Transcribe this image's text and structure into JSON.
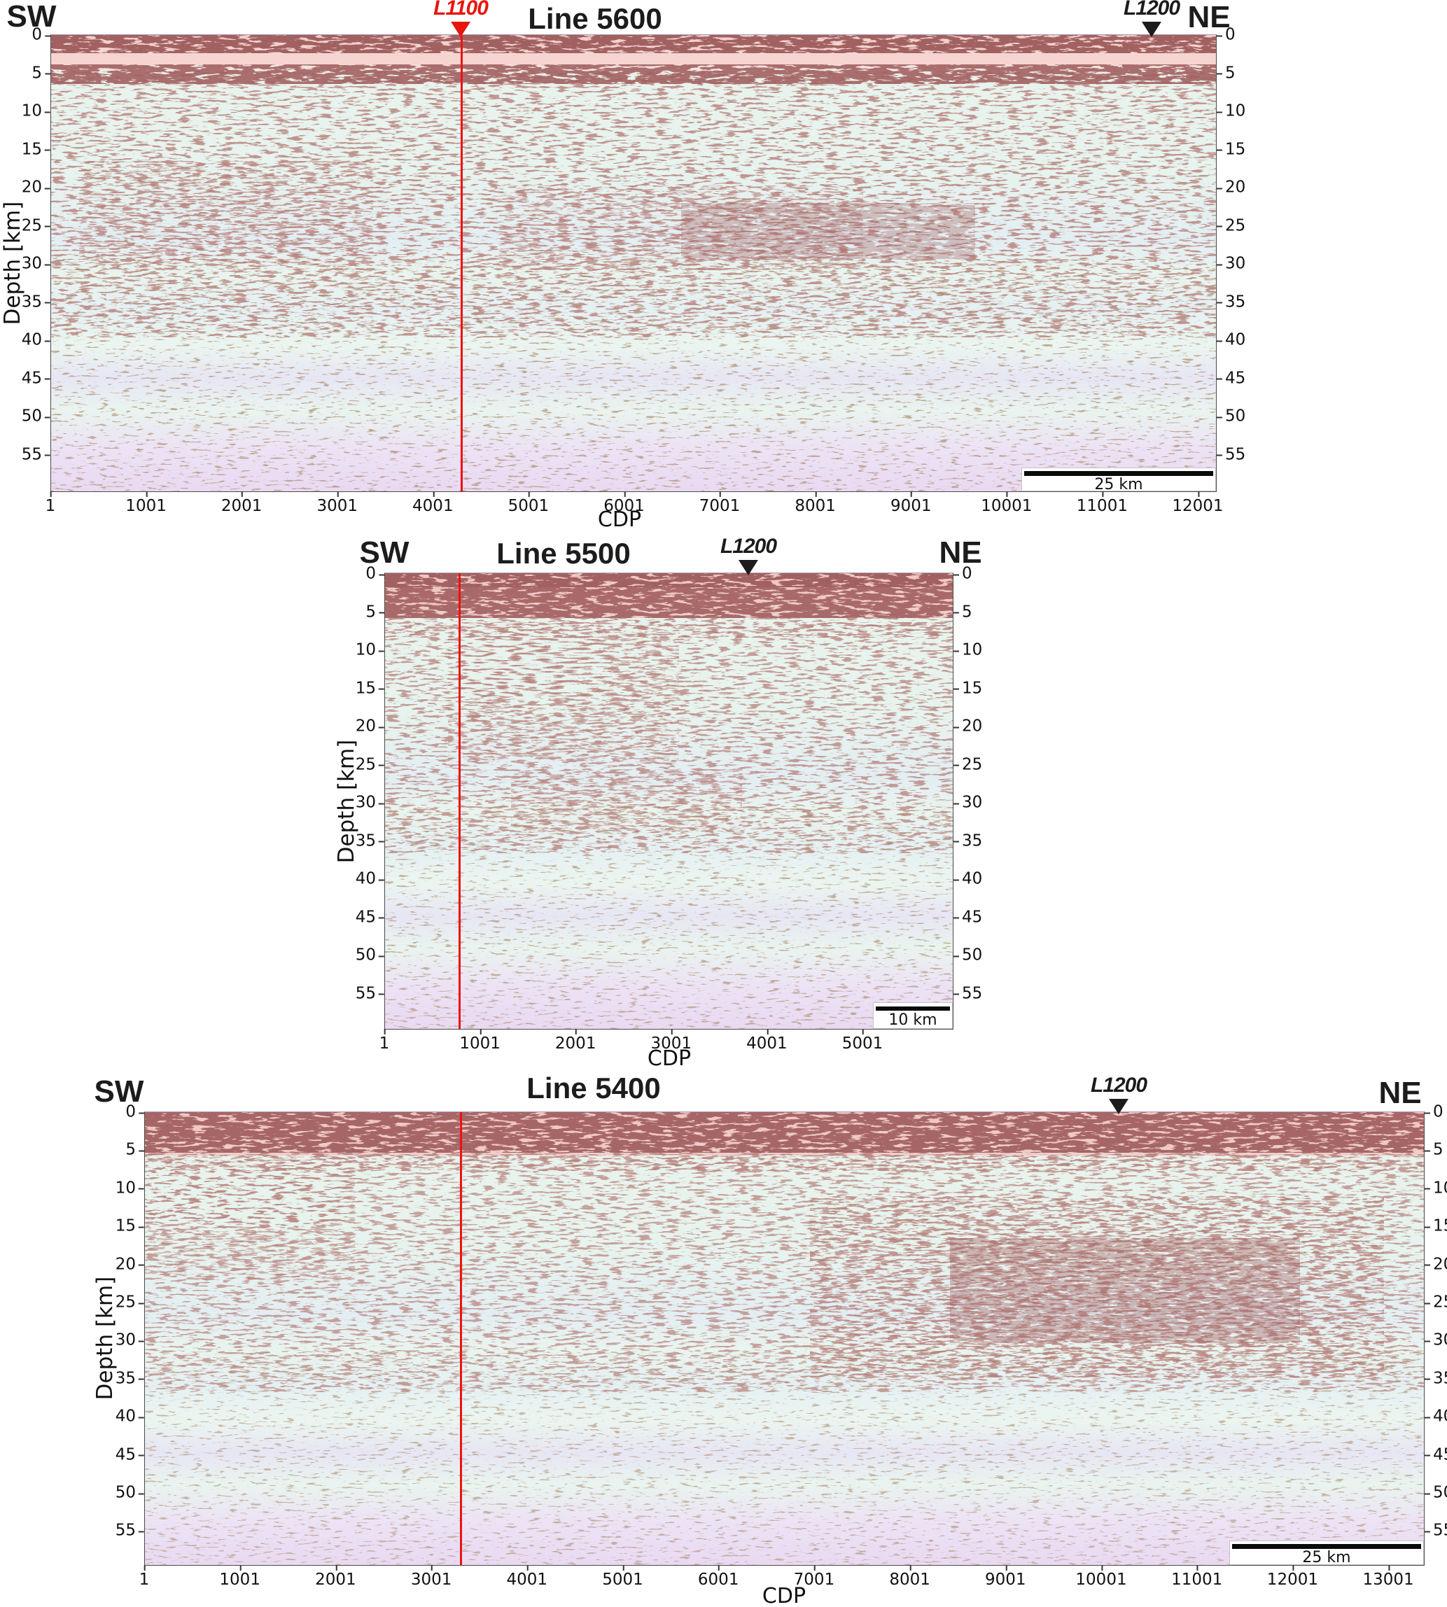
{
  "figure": {
    "background": "#ffffff"
  },
  "colors": {
    "crossline_red": "#ee1111",
    "marker_red": "#e8140e",
    "marker_black": "#1c1c1c",
    "axis": "#4a4a4a",
    "scalebar_bar": "#0a0a0a",
    "seismic_base": "#e9f5ef",
    "seismic_streak": "#783632",
    "seismic_pink_band": "#f2cfcb"
  },
  "panels": [
    {
      "title": "Line 5600",
      "orientation_left": "SW",
      "orientation_right": "NE",
      "ylabel": "Depth [km]",
      "xlabel": "CDP",
      "yticks": [
        "0",
        "5",
        "10",
        "15",
        "20",
        "25",
        "30",
        "35",
        "40",
        "45",
        "50",
        "55"
      ],
      "xticks": [
        "1",
        "1001",
        "2001",
        "3001",
        "4001",
        "5001",
        "6001",
        "7001",
        "8001",
        "9001",
        "10001",
        "11001",
        "12001"
      ],
      "scalebar_label": "25 km",
      "crossline_color": "#ee1111",
      "markers": [
        {
          "label": "L1100",
          "color": "#e8140e"
        },
        {
          "label": "L1200",
          "color": "#1c1c1c"
        }
      ]
    },
    {
      "title": "Line 5500",
      "orientation_left": "SW",
      "orientation_right": "NE",
      "ylabel": "Depth [km]",
      "xlabel": "CDP",
      "yticks": [
        "0",
        "5",
        "10",
        "15",
        "20",
        "25",
        "30",
        "35",
        "40",
        "45",
        "50",
        "55"
      ],
      "xticks": [
        "1",
        "1001",
        "2001",
        "3001",
        "4001",
        "5001"
      ],
      "scalebar_label": "10 km",
      "crossline_color": "#ee1111",
      "markers": [
        {
          "label": "L1200",
          "color": "#1c1c1c"
        }
      ]
    },
    {
      "title": "Line 5400",
      "orientation_left": "SW",
      "orientation_right": "NE",
      "ylabel": "Depth [km]",
      "xlabel": "CDP",
      "yticks": [
        "0",
        "5",
        "10",
        "15",
        "20",
        "25",
        "30",
        "35",
        "40",
        "45",
        "50",
        "55"
      ],
      "xticks": [
        "1",
        "1001",
        "2001",
        "3001",
        "4001",
        "5001",
        "6001",
        "7001",
        "8001",
        "9001",
        "10001",
        "11001",
        "12001",
        "13001"
      ],
      "scalebar_label": "25 km",
      "crossline_color": "#ee1111",
      "markers": [
        {
          "label": "L1200",
          "color": "#1c1c1c"
        }
      ]
    }
  ],
  "chart_data": [
    {
      "type": "heatmap",
      "subtype": "seismic-depth-section",
      "title": "Line 5600",
      "orientation": {
        "left": "SW",
        "right": "NE"
      },
      "x_axis": {
        "label": "CDP",
        "ticks": [
          1,
          1001,
          2001,
          3001,
          4001,
          5001,
          6001,
          7001,
          8001,
          9001,
          10001,
          11001,
          12001
        ],
        "range": [
          1,
          12200
        ]
      },
      "y_axis": {
        "label": "Depth [km]",
        "ticks": [
          0,
          5,
          10,
          15,
          20,
          25,
          30,
          35,
          40,
          45,
          50,
          55
        ],
        "range": [
          0,
          60
        ],
        "ticks_on_both_sides": true
      },
      "crossing_lines": [
        {
          "label": "L1100",
          "cdp": 4290,
          "color": "#e8140e",
          "vertical_red_line": true
        },
        {
          "label": "L1200",
          "cdp": 11500,
          "color": "#1c1c1c",
          "vertical_red_line": false
        }
      ],
      "scale_bar": {
        "label": "25 km",
        "km": 25
      },
      "grid": false,
      "legend": false
    },
    {
      "type": "heatmap",
      "subtype": "seismic-depth-section",
      "title": "Line 5500",
      "orientation": {
        "left": "SW",
        "right": "NE"
      },
      "x_axis": {
        "label": "CDP",
        "ticks": [
          1,
          1001,
          2001,
          3001,
          4001,
          5001
        ],
        "range": [
          1,
          5950
        ]
      },
      "y_axis": {
        "label": "Depth [km]",
        "ticks": [
          0,
          5,
          10,
          15,
          20,
          25,
          30,
          35,
          40,
          45,
          50,
          55
        ],
        "range": [
          0,
          60
        ],
        "ticks_on_both_sides": true
      },
      "crossing_lines": [
        {
          "label": null,
          "cdp": 780,
          "color": "#ee1111",
          "vertical_red_line": true
        },
        {
          "label": "L1200",
          "cdp": 3800,
          "color": "#1c1c1c",
          "vertical_red_line": false
        }
      ],
      "scale_bar": {
        "label": "10 km",
        "km": 10
      },
      "grid": false,
      "legend": false
    },
    {
      "type": "heatmap",
      "subtype": "seismic-depth-section",
      "title": "Line 5400",
      "orientation": {
        "left": "SW",
        "right": "NE"
      },
      "x_axis": {
        "label": "CDP",
        "ticks": [
          1,
          1001,
          2001,
          3001,
          4001,
          5001,
          6001,
          7001,
          8001,
          9001,
          10001,
          11001,
          12001,
          13001
        ],
        "range": [
          1,
          13390
        ]
      },
      "y_axis": {
        "label": "Depth [km]",
        "ticks": [
          0,
          5,
          10,
          15,
          20,
          25,
          30,
          35,
          40,
          45,
          50,
          55
        ],
        "range": [
          0,
          60
        ],
        "ticks_on_both_sides": true
      },
      "crossing_lines": [
        {
          "label": null,
          "cdp": 3300,
          "color": "#ee1111",
          "vertical_red_line": true
        },
        {
          "label": "L1200",
          "cdp": 10190,
          "color": "#1c1c1c",
          "vertical_red_line": false
        }
      ],
      "scale_bar": {
        "label": "25 km",
        "km": 25
      },
      "grid": false,
      "legend": false
    }
  ]
}
